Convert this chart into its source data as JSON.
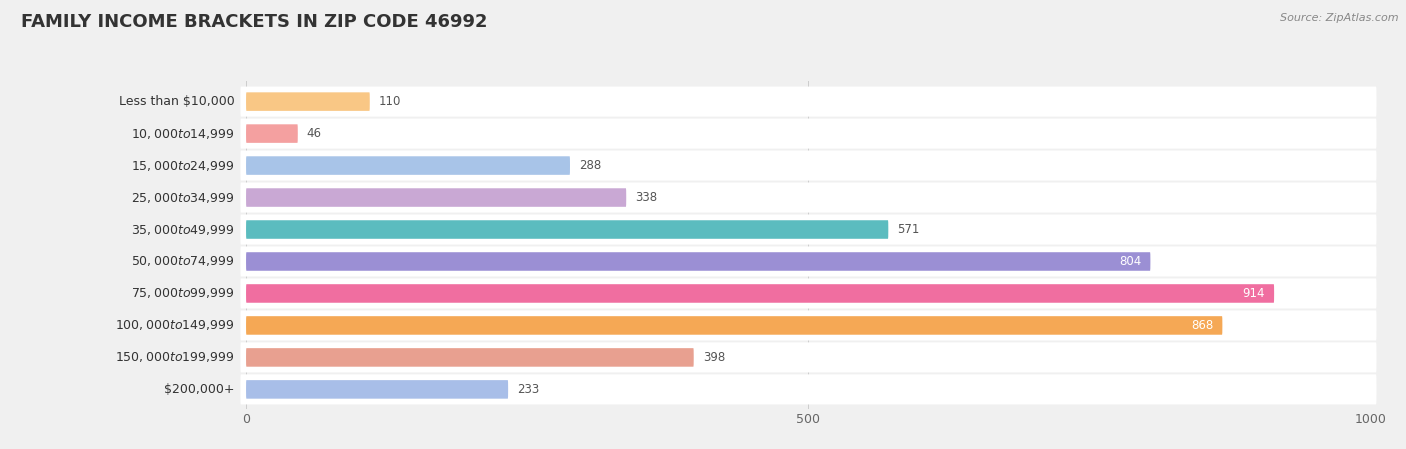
{
  "title": "FAMILY INCOME BRACKETS IN ZIP CODE 46992",
  "source": "Source: ZipAtlas.com",
  "categories": [
    "Less than $10,000",
    "$10,000 to $14,999",
    "$15,000 to $24,999",
    "$25,000 to $34,999",
    "$35,000 to $49,999",
    "$50,000 to $74,999",
    "$75,000 to $99,999",
    "$100,000 to $149,999",
    "$150,000 to $199,999",
    "$200,000+"
  ],
  "values": [
    110,
    46,
    288,
    338,
    571,
    804,
    914,
    868,
    398,
    233
  ],
  "bar_colors": [
    "#F9C785",
    "#F4A0A0",
    "#A8C4E8",
    "#C9A8D4",
    "#5BBCBF",
    "#9B8FD4",
    "#F06EA0",
    "#F5A855",
    "#E8A090",
    "#A8BEE8"
  ],
  "xlim": [
    0,
    1000
  ],
  "xticks": [
    0,
    500,
    1000
  ],
  "background_color": "#f0f0f0",
  "bar_row_bg": "#ffffff",
  "title_fontsize": 13,
  "label_fontsize": 9,
  "value_fontsize": 8.5,
  "bar_height": 0.58,
  "inside_threshold": 600
}
